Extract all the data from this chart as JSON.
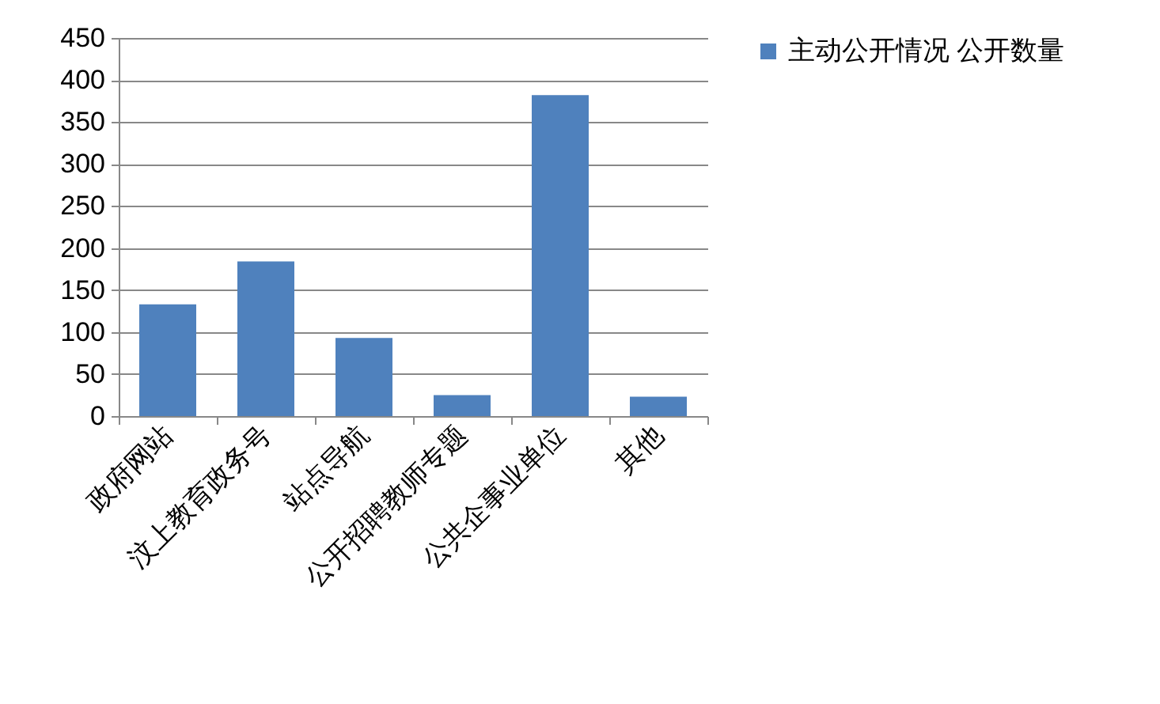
{
  "chart_data": {
    "type": "bar",
    "categories": [
      "政府网站",
      "汶上教育政务号",
      "站点导航",
      "公开招聘教师专题",
      "公共企事业单位",
      "其他"
    ],
    "series": [
      {
        "name": "主动公开情况 公开数量",
        "color": "#4f81bd",
        "values": [
          133,
          184,
          93,
          25,
          382,
          23
        ]
      }
    ],
    "ylim": [
      0,
      450
    ],
    "yticks": [
      0,
      50,
      100,
      150,
      200,
      250,
      300,
      350,
      400,
      450
    ],
    "grid": "y",
    "legend": "right"
  }
}
